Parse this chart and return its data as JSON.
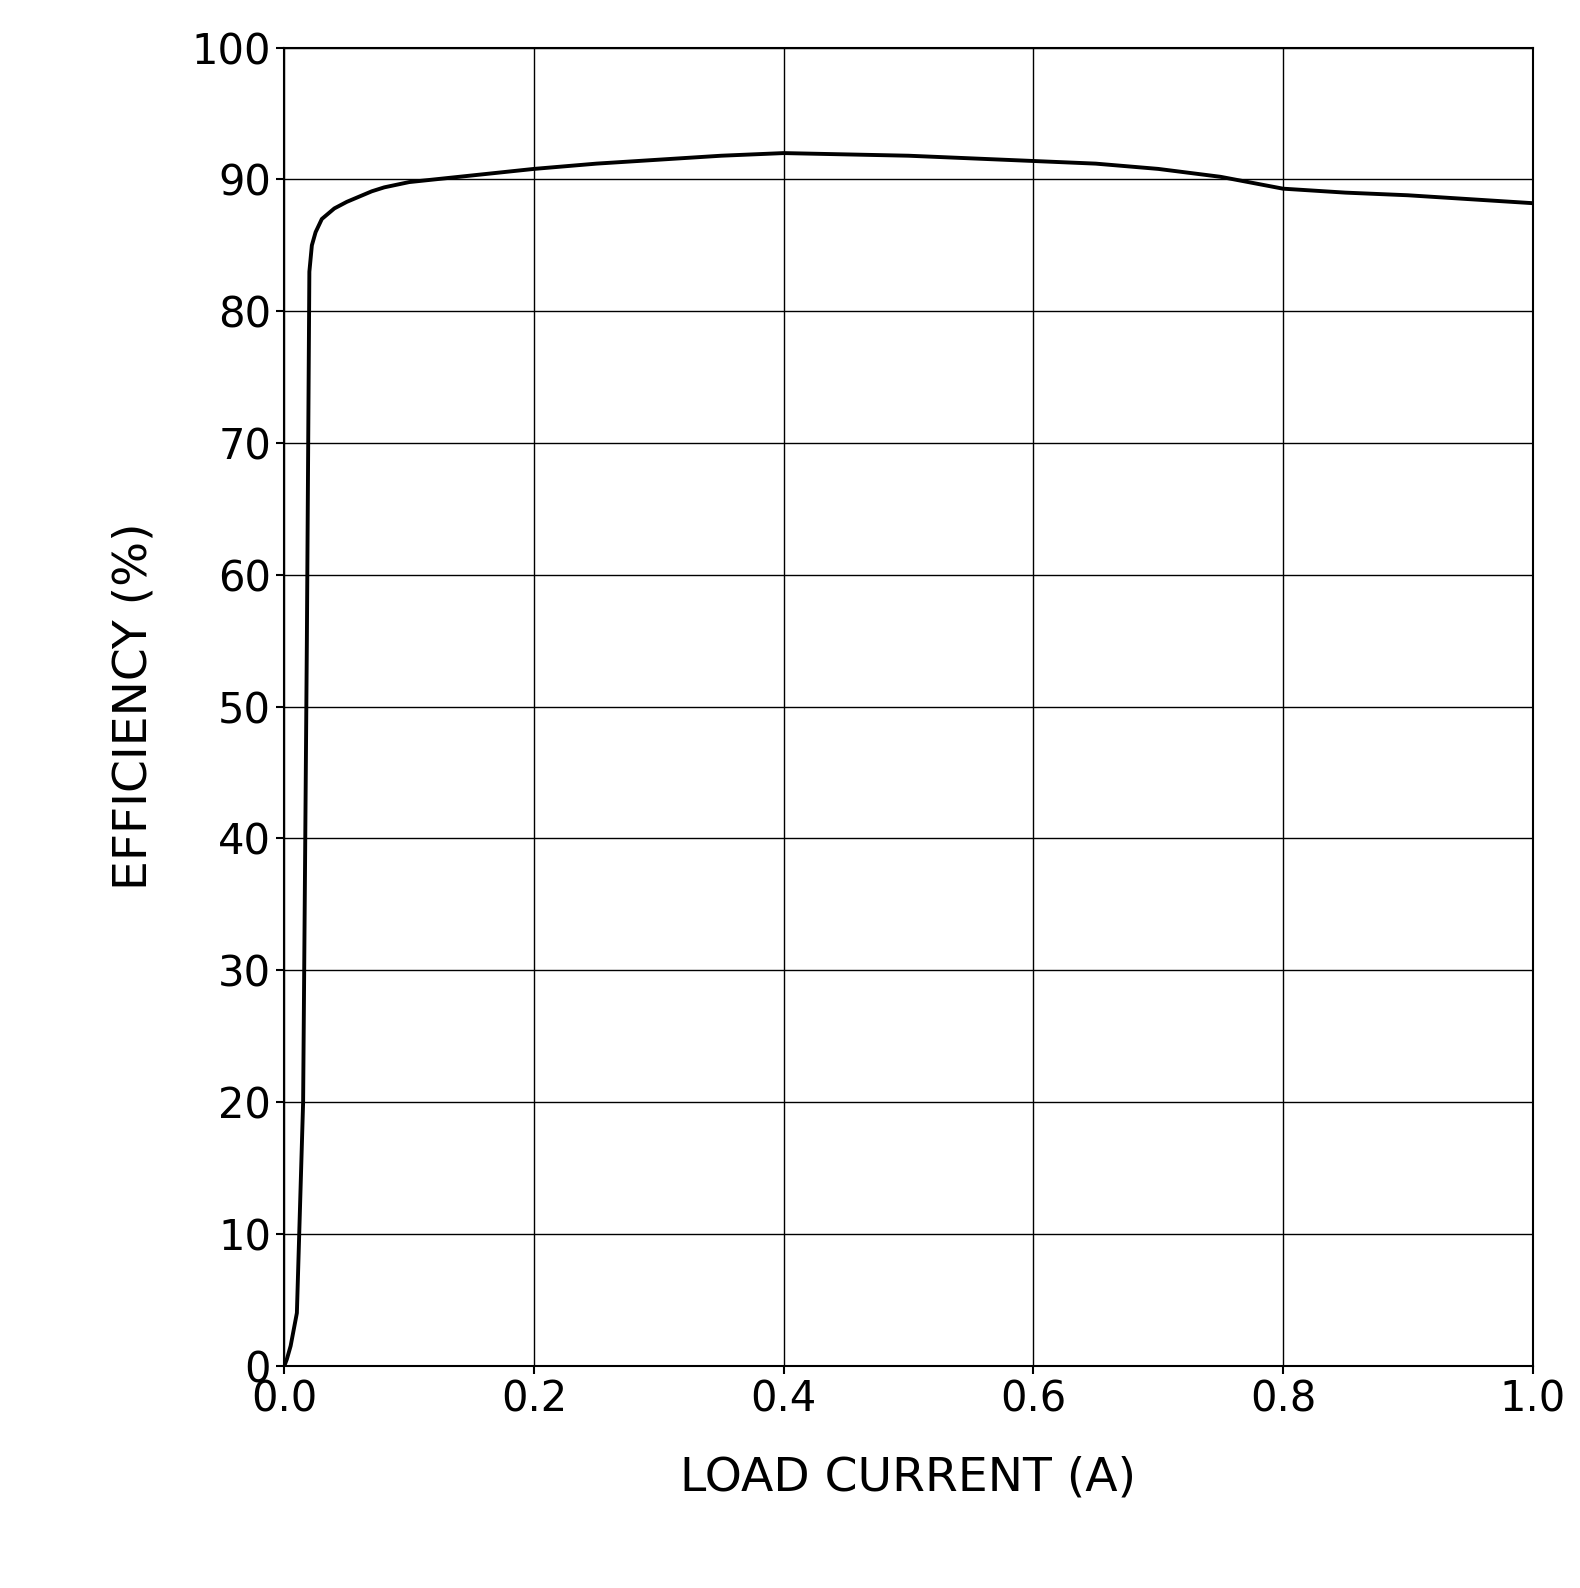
{
  "x": [
    0.0,
    0.002,
    0.005,
    0.01,
    0.015,
    0.018,
    0.02,
    0.022,
    0.025,
    0.03,
    0.04,
    0.05,
    0.06,
    0.07,
    0.08,
    0.1,
    0.12,
    0.15,
    0.18,
    0.2,
    0.25,
    0.3,
    0.35,
    0.4,
    0.45,
    0.5,
    0.55,
    0.6,
    0.65,
    0.7,
    0.75,
    0.8,
    0.85,
    0.9,
    0.95,
    1.0
  ],
  "y": [
    0.0,
    0.5,
    1.5,
    4.0,
    20.0,
    55.0,
    83.0,
    85.0,
    86.0,
    87.0,
    87.8,
    88.3,
    88.7,
    89.1,
    89.4,
    89.8,
    90.0,
    90.3,
    90.6,
    90.8,
    91.2,
    91.5,
    91.8,
    92.0,
    91.9,
    91.8,
    91.6,
    91.4,
    91.2,
    90.8,
    90.2,
    89.3,
    89.0,
    88.8,
    88.5,
    88.2
  ],
  "xlim": [
    0.0,
    1.0
  ],
  "ylim": [
    0,
    100
  ],
  "xticks": [
    0.0,
    0.2,
    0.4,
    0.6,
    0.8,
    1.0
  ],
  "yticks": [
    0,
    10,
    20,
    30,
    40,
    50,
    60,
    70,
    80,
    90,
    100
  ],
  "xlabel": "LOAD CURRENT (A)",
  "ylabel": "EFFICIENCY (%)",
  "line_color": "#000000",
  "line_width": 2.8,
  "grid_color": "#000000",
  "bg_color": "#ffffff",
  "tick_label_fontsize": 30,
  "axis_label_fontsize": 34,
  "font_family": "DejaVu Sans"
}
